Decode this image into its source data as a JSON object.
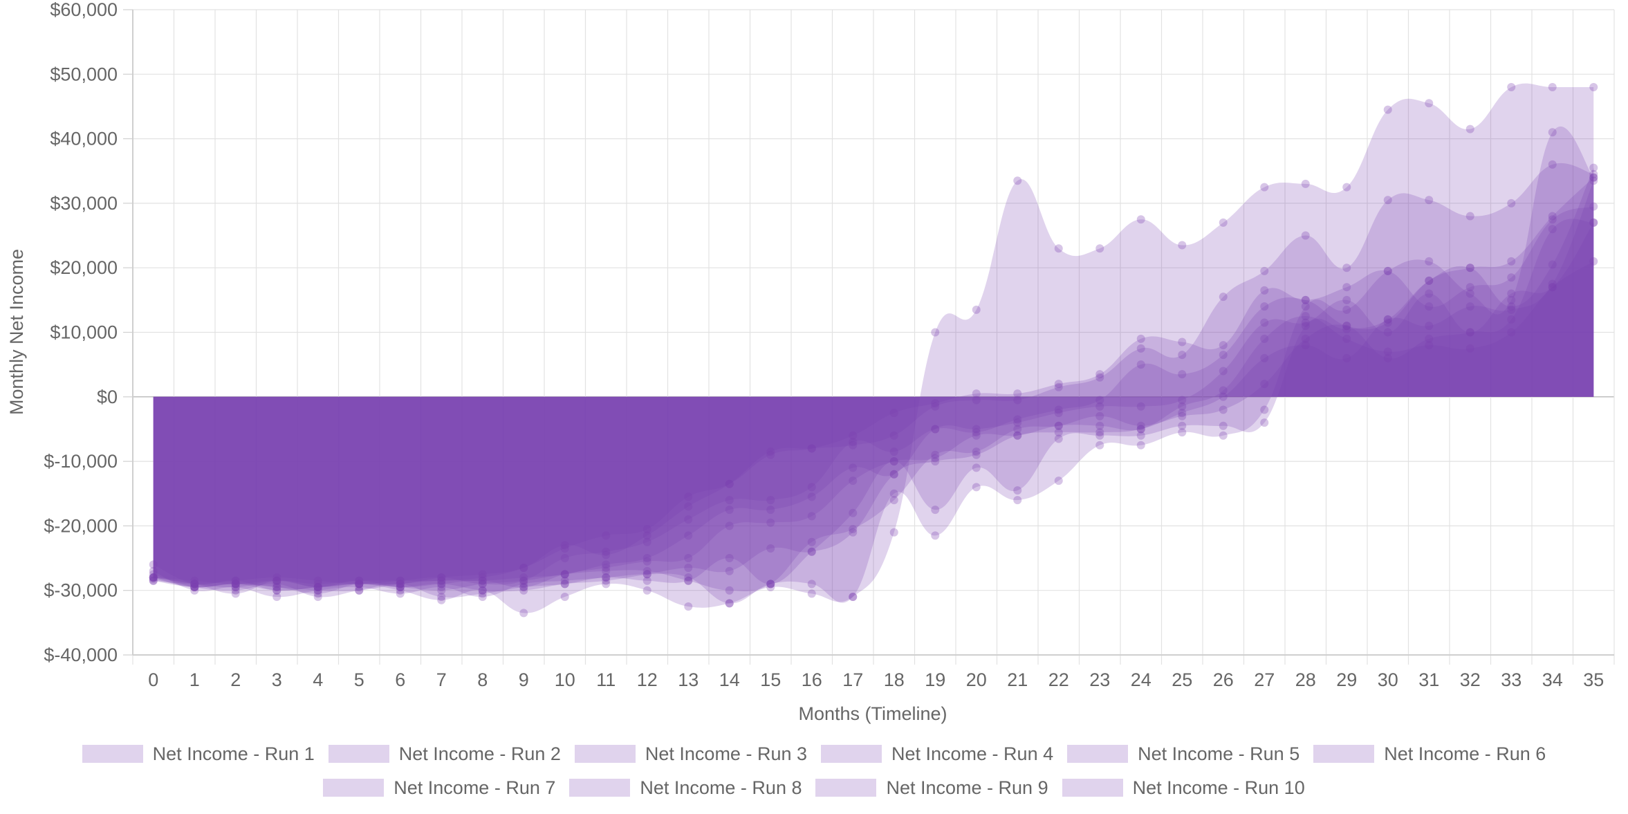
{
  "chart_data": {
    "type": "area",
    "xlabel": "Months (Timeline)",
    "ylabel": "Monthly Net Income",
    "ylim": [
      -40000,
      60000
    ],
    "yticks": [
      -40000,
      -30000,
      -20000,
      -10000,
      0,
      10000,
      20000,
      30000,
      40000,
      50000,
      60000
    ],
    "ytick_labels": [
      "$-40,000",
      "$-30,000",
      "$-20,000",
      "$-10,000",
      "$0",
      "$10,000",
      "$20,000",
      "$30,000",
      "$40,000",
      "$50,000",
      "$60,000"
    ],
    "x": [
      0,
      1,
      2,
      3,
      4,
      5,
      6,
      7,
      8,
      9,
      10,
      11,
      12,
      13,
      14,
      15,
      16,
      17,
      18,
      19,
      20,
      21,
      22,
      23,
      24,
      25,
      26,
      27,
      28,
      29,
      30,
      31,
      32,
      33,
      34,
      35
    ],
    "xtick_labels": [
      "0",
      "1",
      "2",
      "3",
      "4",
      "5",
      "6",
      "7",
      "8",
      "9",
      "10",
      "11",
      "12",
      "13",
      "14",
      "15",
      "16",
      "17",
      "18",
      "19",
      "20",
      "21",
      "22",
      "23",
      "24",
      "25",
      "26",
      "27",
      "28",
      "29",
      "30",
      "31",
      "32",
      "33",
      "34",
      "35"
    ],
    "grid": true,
    "legend_position": "bottom",
    "fill_color": "#7b3fb0",
    "fill_opacity": 0.23,
    "series": [
      {
        "name": "Net Income - Run 1",
        "values": [
          -26000,
          -29000,
          -28500,
          -30000,
          -29500,
          -29000,
          -30000,
          -31500,
          -30000,
          -33500,
          -31000,
          -29000,
          -30000,
          -32500,
          -32000,
          -29500,
          -30500,
          -31000,
          -21000,
          10000,
          13500,
          33500,
          23000,
          23000,
          27500,
          23500,
          27000,
          32500,
          33000,
          32500,
          44500,
          45500,
          41500,
          48000,
          48000,
          48000
        ]
      },
      {
        "name": "Net Income - Run 2",
        "values": [
          -27000,
          -30000,
          -29500,
          -31000,
          -30000,
          -29500,
          -30500,
          -29500,
          -31000,
          -29000,
          -28500,
          -28000,
          -27500,
          -28000,
          -32000,
          -29000,
          -29000,
          -31000,
          -15000,
          -21500,
          -14000,
          -16000,
          -13000,
          -7500,
          -7500,
          -5500,
          -6000,
          -2000,
          14000,
          13500,
          19500,
          21000,
          16000,
          15000,
          41000,
          34000
        ]
      },
      {
        "name": "Net Income - Run 3",
        "values": [
          -27500,
          -29500,
          -30000,
          -29000,
          -31000,
          -30000,
          -29000,
          -31000,
          -30500,
          -29500,
          -29000,
          -28000,
          -28500,
          -28500,
          -25000,
          -29000,
          -24000,
          -18000,
          -10000,
          -17500,
          -11000,
          -14500,
          -6500,
          -6000,
          -6000,
          -4500,
          -4500,
          -4000,
          11000,
          10500,
          12000,
          18000,
          20000,
          14000,
          20500,
          35500
        ]
      },
      {
        "name": "Net Income - Run 4",
        "values": [
          -28000,
          -28500,
          -29000,
          -28500,
          -29500,
          -29000,
          -29500,
          -30000,
          -29000,
          -28500,
          -27500,
          -27000,
          -27000,
          -28500,
          -30000,
          -29000,
          -22500,
          -20500,
          -16000,
          -9000,
          -8500,
          -5000,
          -4500,
          -3000,
          -4500,
          -3000,
          -2000,
          2000,
          9000,
          11000,
          6000,
          9000,
          10000,
          12000,
          26000,
          27000
        ]
      },
      {
        "name": "Net Income - Run 5",
        "values": [
          -28200,
          -29500,
          -29000,
          -29500,
          -30500,
          -29000,
          -29500,
          -29000,
          -30000,
          -30000,
          -29000,
          -28500,
          -27500,
          -26500,
          -27000,
          -23500,
          -24000,
          -21000,
          -12000,
          -10000,
          -9000,
          -6000,
          -5500,
          -5500,
          -5000,
          -2500,
          0,
          6000,
          8000,
          6000,
          12000,
          11000,
          14000,
          13500,
          17500,
          33500
        ]
      },
      {
        "name": "Net Income - Run 6",
        "values": [
          -28000,
          -29000,
          -30500,
          -28500,
          -29500,
          -28500,
          -29500,
          -29000,
          -28500,
          -29500,
          -27500,
          -26500,
          -25500,
          -25000,
          -20000,
          -19500,
          -18500,
          -13000,
          -10000,
          -9500,
          -6000,
          -6000,
          -4500,
          -4500,
          -5000,
          -1500,
          1000,
          9000,
          12500,
          9000,
          7000,
          8000,
          7500,
          10000,
          17000,
          21000
        ]
      },
      {
        "name": "Net Income - Run 7",
        "values": [
          -28000,
          -29500,
          -29000,
          -29500,
          -30000,
          -30000,
          -29000,
          -28500,
          -28500,
          -28000,
          -27500,
          -26000,
          -25000,
          -21500,
          -17500,
          -17500,
          -15500,
          -11000,
          -12000,
          -5000,
          -5000,
          -4000,
          -2500,
          -1500,
          -1500,
          -500,
          4000,
          11500,
          11500,
          15000,
          10000,
          16000,
          10000,
          16000,
          17000,
          27000
        ]
      },
      {
        "name": "Net Income - Run 8",
        "values": [
          -28500,
          -29000,
          -28500,
          -28000,
          -28500,
          -29000,
          -28500,
          -28000,
          -29000,
          -28500,
          -25000,
          -24000,
          -22500,
          -19000,
          -16000,
          -16000,
          -14000,
          -7000,
          -8500,
          -5000,
          -5500,
          -3500,
          -2000,
          -500,
          5000,
          3500,
          6500,
          14000,
          15000,
          11000,
          11500,
          18000,
          20000,
          21000,
          28000,
          34000
        ]
      },
      {
        "name": "Net Income - Run 9",
        "values": [
          -28500,
          -29500,
          -29000,
          -30000,
          -29500,
          -29000,
          -29000,
          -28000,
          -27500,
          -26500,
          -23000,
          -24500,
          -21500,
          -17000,
          -13500,
          -8500,
          -8000,
          -7500,
          -6000,
          -1500,
          -500,
          -500,
          1500,
          3000,
          7500,
          6500,
          15500,
          19500,
          25000,
          20000,
          30500,
          30500,
          28000,
          30000,
          36000,
          34500
        ]
      },
      {
        "name": "Net Income - Run 10",
        "values": [
          -28000,
          -29000,
          -29500,
          -28500,
          -29000,
          -28500,
          -28500,
          -28500,
          -28000,
          -26500,
          -23500,
          -21500,
          -20500,
          -15500,
          -13500,
          -9000,
          -8000,
          -6000,
          -2500,
          -1000,
          500,
          500,
          2000,
          3500,
          9000,
          8500,
          8000,
          16500,
          15000,
          17000,
          19500,
          14000,
          17000,
          18500,
          27500,
          29500
        ]
      }
    ]
  }
}
